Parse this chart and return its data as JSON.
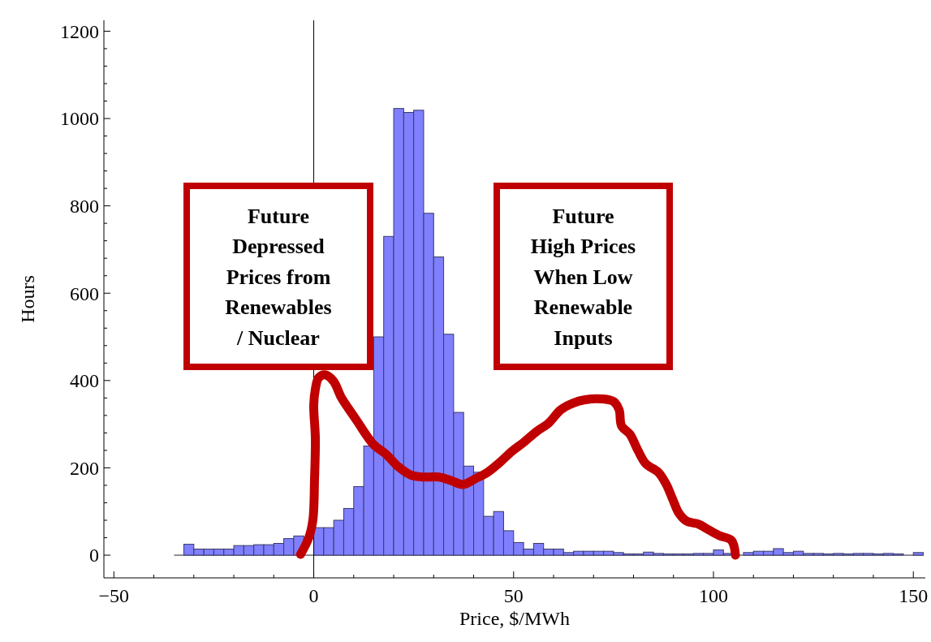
{
  "chart_data": {
    "type": "histogram",
    "xlabel": "Price, $/MWh",
    "ylabel": "Hours",
    "bins": [
      -32.5,
      -30,
      -27.5,
      -25,
      -22.5,
      -20,
      -17.5,
      -15,
      -12.5,
      -10,
      -7.5,
      -5,
      -2.5,
      0,
      2.5,
      5,
      7.5,
      10,
      12.5,
      15,
      17.5,
      20,
      22.5,
      25,
      27.5,
      30,
      32.5,
      35,
      37.5,
      40,
      42.5,
      45,
      47.5,
      50,
      52.5,
      55,
      57.5,
      60,
      62.5,
      65,
      67.5,
      70,
      72.5,
      75,
      77.5,
      80,
      82.5,
      85,
      87.5,
      90,
      92.5,
      95,
      97.5,
      100,
      102.5,
      105,
      107.5,
      110,
      112.5,
      115,
      117.5,
      120,
      122.5,
      125,
      127.5,
      130,
      132.5,
      135,
      137.5,
      140,
      142.5,
      145,
      147.5,
      150,
      152.5
    ],
    "values": [
      25,
      14,
      14,
      14,
      14,
      22,
      22,
      24,
      24,
      27,
      38,
      44,
      null,
      63,
      63,
      80,
      107,
      157,
      250,
      500,
      730,
      1023,
      1014,
      1019,
      783,
      683,
      506,
      327,
      204,
      190,
      89,
      100,
      56,
      29,
      14,
      27,
      14,
      14,
      6,
      9,
      9,
      9,
      9,
      6,
      3,
      3,
      7,
      4,
      3,
      3,
      3,
      4,
      4,
      12,
      4,
      null,
      6,
      9,
      9,
      15,
      6,
      9,
      4,
      4,
      3,
      4,
      3,
      4,
      4,
      3,
      4,
      3,
      0,
      6
    ],
    "color": "#8080ff",
    "xlim": [
      -52.5,
      153
    ],
    "ylim": [
      -52,
      1225
    ],
    "xticks": [
      -50,
      {
        "value": -40,
        "label": null
      },
      {
        "value": -30,
        "label": null
      },
      {
        "value": -20,
        "label": null
      },
      {
        "value": -10,
        "label": null
      },
      0,
      {
        "value": 10,
        "label": null
      },
      {
        "value": 20,
        "label": null
      },
      {
        "value": 30,
        "label": null
      },
      {
        "value": 40,
        "label": null
      },
      50,
      {
        "value": 60,
        "label": null
      },
      {
        "value": 70,
        "label": null
      },
      {
        "value": 80,
        "label": null
      },
      {
        "value": 90,
        "label": null
      },
      100,
      {
        "value": 110,
        "label": null
      },
      {
        "value": 120,
        "label": null
      },
      {
        "value": 130,
        "label": null
      },
      {
        "value": 140,
        "label": null
      },
      150
    ],
    "yticks": [
      0,
      {
        "value": 40,
        "label": null
      },
      {
        "value": 80,
        "label": null
      },
      {
        "value": 120,
        "label": null
      },
      {
        "value": 160,
        "label": null
      },
      200,
      {
        "value": 240,
        "label": null
      },
      {
        "value": 280,
        "label": null
      },
      {
        "value": 320,
        "label": null
      },
      {
        "value": 360,
        "label": null
      },
      400,
      {
        "value": 440,
        "label": null
      },
      {
        "value": 480,
        "label": null
      },
      {
        "value": 520,
        "label": null
      },
      {
        "value": 560,
        "label": null
      },
      600,
      {
        "value": 640,
        "label": null
      },
      {
        "value": 680,
        "label": null
      },
      {
        "value": 720,
        "label": null
      },
      {
        "value": 760,
        "label": null
      },
      800,
      {
        "value": 840,
        "label": null
      },
      {
        "value": 880,
        "label": null
      },
      {
        "value": 920,
        "label": null
      },
      {
        "value": 960,
        "label": null
      },
      1000,
      {
        "value": 1040,
        "label": null
      },
      {
        "value": 1080,
        "label": null
      },
      {
        "value": 1120,
        "label": null
      },
      {
        "value": 1160,
        "label": null
      },
      1200
    ],
    "ref_lines": [
      {
        "axis": "x",
        "value": 0,
        "color": "#000000"
      }
    ],
    "annotations": [
      "Future\nDepressed\nPrices from\nRenewables\n/ Nuclear",
      "Future\nHigh Prices\nWhen Low\nRenewable\nInputs"
    ],
    "series": [
      {
        "type": "line",
        "color": "#c00000",
        "x": [
          -3.3,
          -1.2,
          -0.2,
          0.2,
          0.4,
          0,
          0.4,
          1.2,
          2.8,
          4.9,
          6.9,
          8.9,
          11,
          13,
          15,
          18.1,
          21.1,
          24.2,
          27.2,
          31.3,
          34.3,
          37.4,
          40.4,
          43.5,
          46.5,
          49.6,
          52.6,
          55.7,
          58.7,
          61.8,
          64.8,
          67.9,
          72,
          75,
          76.4,
          77,
          79.1,
          81.1,
          83.1,
          86.2,
          88.2,
          89.8,
          91.3,
          93.3,
          96.3,
          98.4,
          101.4,
          104.5,
          105.5
        ],
        "values": [
          2,
          41,
          82,
          175,
          268,
          343,
          380,
          406,
          413,
          399,
          361,
          333,
          305,
          277,
          253,
          231,
          203,
          184,
          179,
          179,
          171,
          162,
          175,
          190,
          212,
          238,
          259,
          283,
          302,
          333,
          348,
          356,
          358,
          352,
          333,
          296,
          277,
          240,
          209,
          190,
          162,
          128,
          97,
          78,
          71,
          60,
          45,
          34,
          0
        ]
      }
    ],
    "grid": false
  }
}
